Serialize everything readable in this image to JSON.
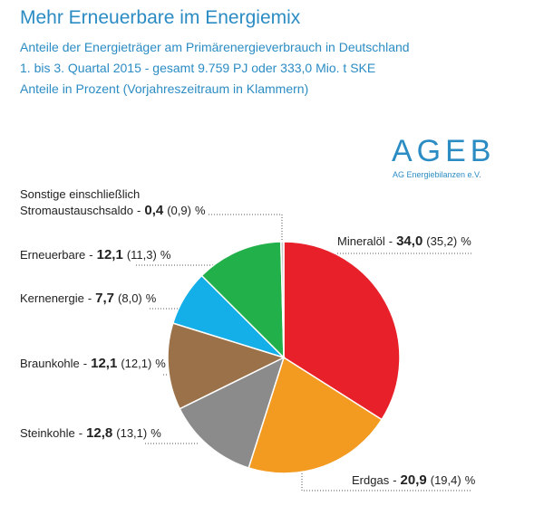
{
  "chart_data": {
    "type": "pie",
    "title": "Mehr Erneuerbare im Energiemix",
    "subtitle": [
      "Anteile der Energieträger am Primärenergieverbrauch in Deutschland",
      "1. bis 3. Quartal 2015 - gesamt 9.759 PJ oder 333,0 Mio. t SKE",
      "Anteile in Prozent (Vorjahreszeitraum in Klammern)"
    ],
    "logo": {
      "name": "AGEB",
      "text": "AG Energiebilanzen e.V."
    },
    "categories": [
      "Mineralöl",
      "Erdgas",
      "Steinkohle",
      "Braunkohle",
      "Kernenergie",
      "Erneuerbare",
      "Sonstige einschließlich Stromaustauschsaldo"
    ],
    "values": [
      34.0,
      20.9,
      12.8,
      12.1,
      7.7,
      12.1,
      0.4
    ],
    "value_labels": [
      "34,0",
      "20,9",
      "12,8",
      "12,1",
      "7,7",
      "12,1",
      "0,4"
    ],
    "previous_values": [
      35.2,
      19.4,
      13.1,
      12.1,
      8.0,
      11.3,
      0.9
    ],
    "previous_value_labels": [
      "(35,2)",
      "(19,4)",
      "(13,1)",
      "(12,1)",
      "(8,0)",
      "(11,3)",
      "(0,9)"
    ],
    "separator": "-",
    "unit": "%",
    "colors": [
      "#e8202a",
      "#f39a21",
      "#8b8b8b",
      "#9a7148",
      "#14aee8",
      "#22b04b",
      "#c9c9c9"
    ]
  }
}
